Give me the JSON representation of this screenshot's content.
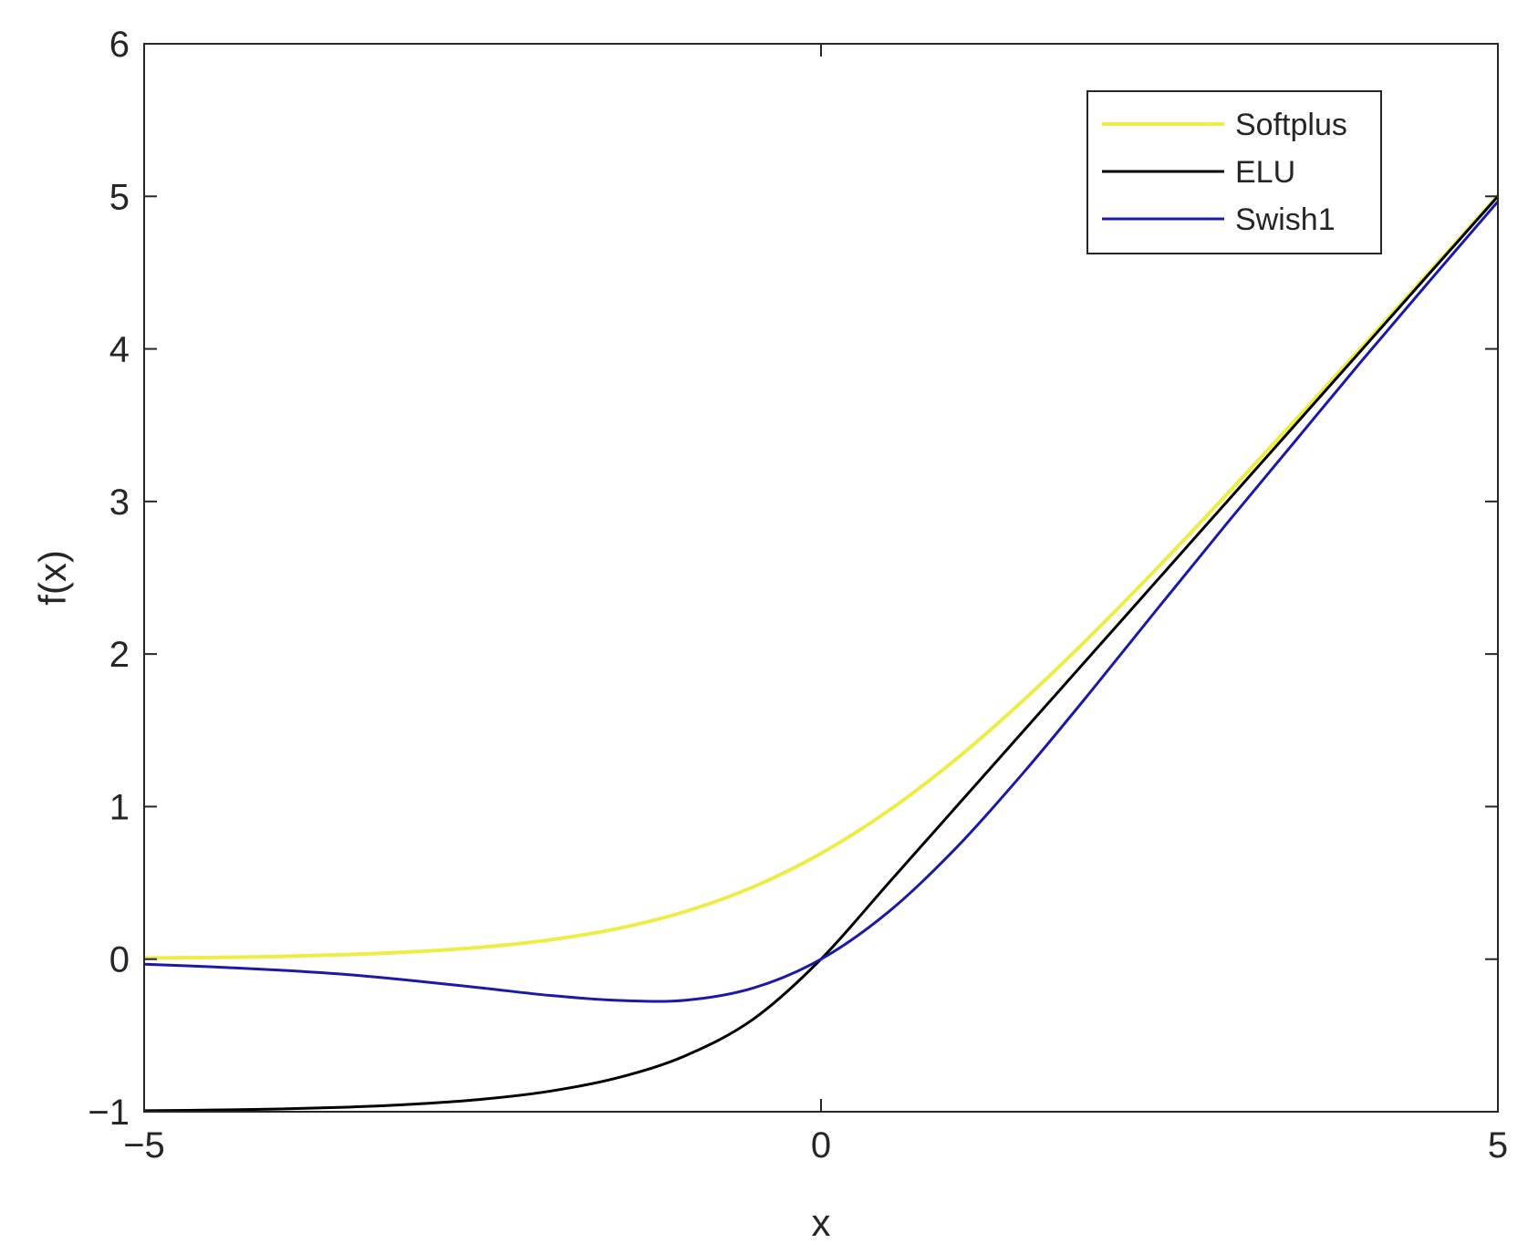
{
  "chart_data": {
    "type": "line",
    "xlabel": "x",
    "ylabel": "f(x)",
    "xlim": [
      -5,
      5
    ],
    "ylim": [
      -1,
      6
    ],
    "x_ticks": [
      {
        "value": -5,
        "label": "−5"
      },
      {
        "value": 0,
        "label": "0"
      },
      {
        "value": 5,
        "label": "5"
      }
    ],
    "y_ticks": [
      {
        "value": -1,
        "label": "−1"
      },
      {
        "value": 0,
        "label": "0"
      },
      {
        "value": 1,
        "label": "1"
      },
      {
        "value": 2,
        "label": "2"
      },
      {
        "value": 3,
        "label": "3"
      },
      {
        "value": 4,
        "label": "4"
      },
      {
        "value": 5,
        "label": "5"
      },
      {
        "value": 6,
        "label": "6"
      }
    ],
    "grid": false,
    "box": true,
    "legend_position": "top-right",
    "x": [
      -5,
      -4.5,
      -4,
      -3.5,
      -3,
      -2.5,
      -2,
      -1.5,
      -1,
      -0.5,
      0,
      0.5,
      1,
      1.5,
      2,
      2.5,
      3,
      3.5,
      4,
      4.5,
      5
    ],
    "series": [
      {
        "name": "Softplus",
        "color": "#eded46",
        "values": [
          0.007,
          0.011,
          0.018,
          0.03,
          0.049,
          0.079,
          0.127,
          0.201,
          0.313,
          0.474,
          0.693,
          0.974,
          1.313,
          1.701,
          2.127,
          2.579,
          3.049,
          3.53,
          4.018,
          4.511,
          5.007
        ]
      },
      {
        "name": "ELU",
        "color": "#000000",
        "values": [
          -0.993,
          -0.989,
          -0.982,
          -0.97,
          -0.95,
          -0.918,
          -0.865,
          -0.777,
          -0.632,
          -0.393,
          0,
          0.5,
          1,
          1.5,
          2,
          2.5,
          3,
          3.5,
          4,
          4.5,
          5
        ]
      },
      {
        "name": "Swish1",
        "color": "#1a1aa6",
        "values": [
          -0.033,
          -0.05,
          -0.072,
          -0.101,
          -0.142,
          -0.189,
          -0.238,
          -0.27,
          -0.269,
          -0.189,
          0,
          0.311,
          0.731,
          1.227,
          1.762,
          2.313,
          2.858,
          3.393,
          3.928,
          4.45,
          4.966
        ]
      }
    ]
  }
}
